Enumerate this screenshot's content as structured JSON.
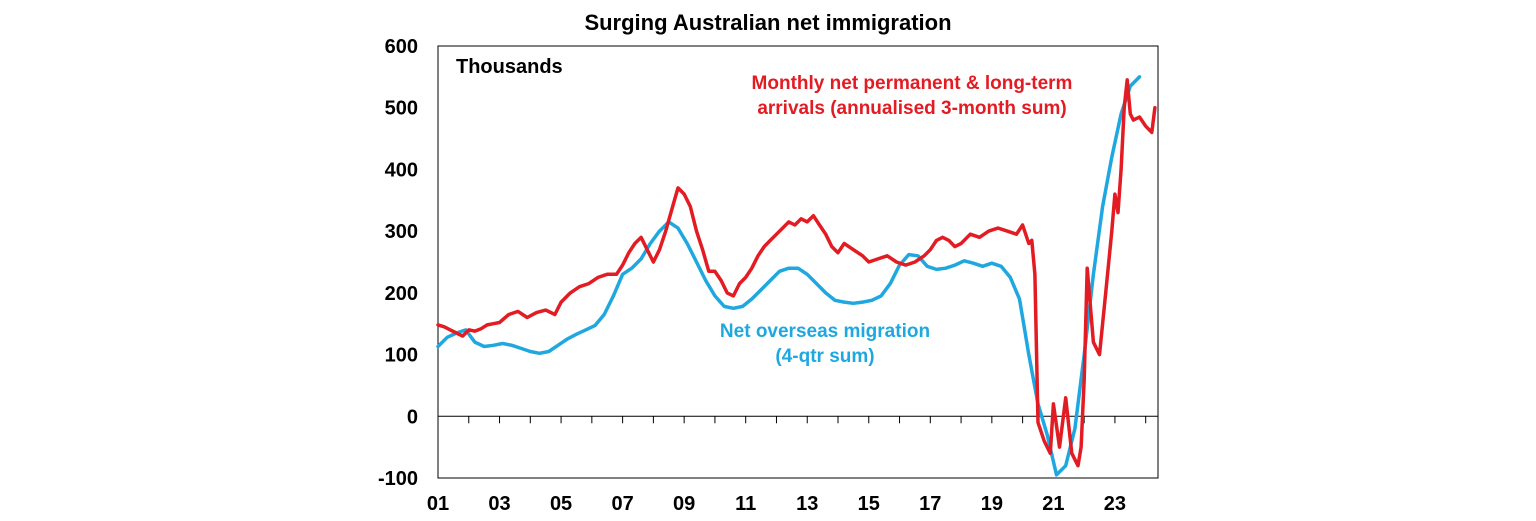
{
  "chart_data": {
    "type": "line",
    "title": "Surging Australian net immigration",
    "unit_label": "Thousands",
    "xlabel": "",
    "ylabel": "",
    "x_tick_labels": [
      "01",
      "03",
      "05",
      "07",
      "09",
      "11",
      "13",
      "15",
      "17",
      "19",
      "21",
      "23"
    ],
    "y_tick_labels": [
      "600",
      "500",
      "400",
      "300",
      "200",
      "100",
      "0",
      "-100"
    ],
    "xlim": [
      2001.0,
      2024.4
    ],
    "ylim": [
      -100,
      600
    ],
    "grid": false,
    "series": [
      {
        "name": "Monthly net permanent & long-term arrivals (annualised 3-month sum)",
        "label_lines": [
          "Monthly net permanent & long-term",
          "arrivals (annualised 3-month sum)"
        ],
        "color": "#e31b23",
        "x": [
          2001.0,
          2001.2,
          2001.4,
          2001.6,
          2001.8,
          2002.0,
          2002.2,
          2002.4,
          2002.6,
          2002.8,
          2003.0,
          2003.3,
          2003.6,
          2003.9,
          2004.2,
          2004.5,
          2004.8,
          2005.0,
          2005.3,
          2005.6,
          2005.9,
          2006.2,
          2006.5,
          2006.8,
          2007.0,
          2007.2,
          2007.4,
          2007.6,
          2007.8,
          2008.0,
          2008.2,
          2008.4,
          2008.6,
          2008.8,
          2009.0,
          2009.2,
          2009.4,
          2009.6,
          2009.8,
          2010.0,
          2010.2,
          2010.4,
          2010.6,
          2010.8,
          2011.0,
          2011.2,
          2011.4,
          2011.6,
          2011.8,
          2012.0,
          2012.2,
          2012.4,
          2012.6,
          2012.8,
          2013.0,
          2013.2,
          2013.4,
          2013.6,
          2013.8,
          2014.0,
          2014.2,
          2014.5,
          2014.8,
          2015.0,
          2015.3,
          2015.6,
          2015.9,
          2016.2,
          2016.5,
          2016.8,
          2017.0,
          2017.2,
          2017.4,
          2017.6,
          2017.8,
          2018.0,
          2018.3,
          2018.6,
          2018.9,
          2019.2,
          2019.5,
          2019.8,
          2020.0,
          2020.2,
          2020.3,
          2020.4,
          2020.5,
          2020.7,
          2020.9,
          2021.0,
          2021.2,
          2021.4,
          2021.6,
          2021.8,
          2021.9,
          2022.0,
          2022.1,
          2022.2,
          2022.3,
          2022.5,
          2022.7,
          2022.9,
          2023.0,
          2023.1,
          2023.2,
          2023.3,
          2023.4,
          2023.5,
          2023.6,
          2023.8,
          2024.0,
          2024.2,
          2024.3
        ],
        "values": [
          148,
          145,
          140,
          135,
          130,
          140,
          138,
          142,
          148,
          150,
          152,
          165,
          170,
          160,
          168,
          172,
          165,
          185,
          200,
          210,
          215,
          225,
          230,
          230,
          245,
          265,
          280,
          290,
          270,
          250,
          270,
          300,
          335,
          370,
          360,
          340,
          300,
          270,
          235,
          235,
          220,
          200,
          195,
          215,
          225,
          240,
          260,
          275,
          285,
          295,
          305,
          315,
          310,
          320,
          315,
          325,
          310,
          295,
          275,
          265,
          280,
          270,
          260,
          250,
          255,
          260,
          250,
          245,
          250,
          260,
          270,
          285,
          290,
          285,
          275,
          280,
          295,
          290,
          300,
          305,
          300,
          295,
          310,
          280,
          285,
          230,
          -10,
          -40,
          -60,
          20,
          -50,
          30,
          -60,
          -80,
          -50,
          60,
          240,
          180,
          120,
          100,
          200,
          300,
          360,
          330,
          400,
          500,
          545,
          490,
          480,
          485,
          470,
          460,
          500
        ]
      },
      {
        "name": "Net overseas migration (4-qtr sum)",
        "label_lines": [
          "Net overseas migration",
          "(4-qtr sum)"
        ],
        "color": "#1fa8e0",
        "x": [
          2001.0,
          2001.3,
          2001.6,
          2001.9,
          2002.2,
          2002.5,
          2002.8,
          2003.1,
          2003.4,
          2003.7,
          2004.0,
          2004.3,
          2004.6,
          2004.9,
          2005.2,
          2005.5,
          2005.8,
          2006.1,
          2006.4,
          2006.7,
          2007.0,
          2007.3,
          2007.6,
          2007.9,
          2008.2,
          2008.5,
          2008.8,
          2009.1,
          2009.4,
          2009.7,
          2010.0,
          2010.3,
          2010.6,
          2010.9,
          2011.2,
          2011.5,
          2011.8,
          2012.1,
          2012.4,
          2012.7,
          2013.0,
          2013.3,
          2013.6,
          2013.9,
          2014.2,
          2014.5,
          2014.8,
          2015.1,
          2015.4,
          2015.7,
          2016.0,
          2016.3,
          2016.6,
          2016.9,
          2017.2,
          2017.5,
          2017.8,
          2018.1,
          2018.4,
          2018.7,
          2019.0,
          2019.3,
          2019.6,
          2019.9,
          2020.2,
          2020.5,
          2020.8,
          2021.1,
          2021.4,
          2021.7,
          2022.0,
          2022.3,
          2022.6,
          2022.9,
          2023.2,
          2023.5,
          2023.8
        ],
        "values": [
          113,
          128,
          135,
          140,
          120,
          113,
          115,
          118,
          115,
          110,
          105,
          102,
          105,
          115,
          125,
          133,
          140,
          147,
          165,
          195,
          230,
          240,
          255,
          280,
          300,
          315,
          305,
          280,
          250,
          220,
          195,
          178,
          175,
          178,
          190,
          205,
          220,
          235,
          240,
          240,
          230,
          215,
          200,
          188,
          185,
          183,
          185,
          188,
          195,
          215,
          245,
          262,
          260,
          243,
          238,
          240,
          245,
          252,
          248,
          243,
          248,
          243,
          225,
          190,
          100,
          20,
          -30,
          -95,
          -80,
          -20,
          100,
          230,
          340,
          420,
          490,
          535,
          550
        ]
      }
    ]
  }
}
